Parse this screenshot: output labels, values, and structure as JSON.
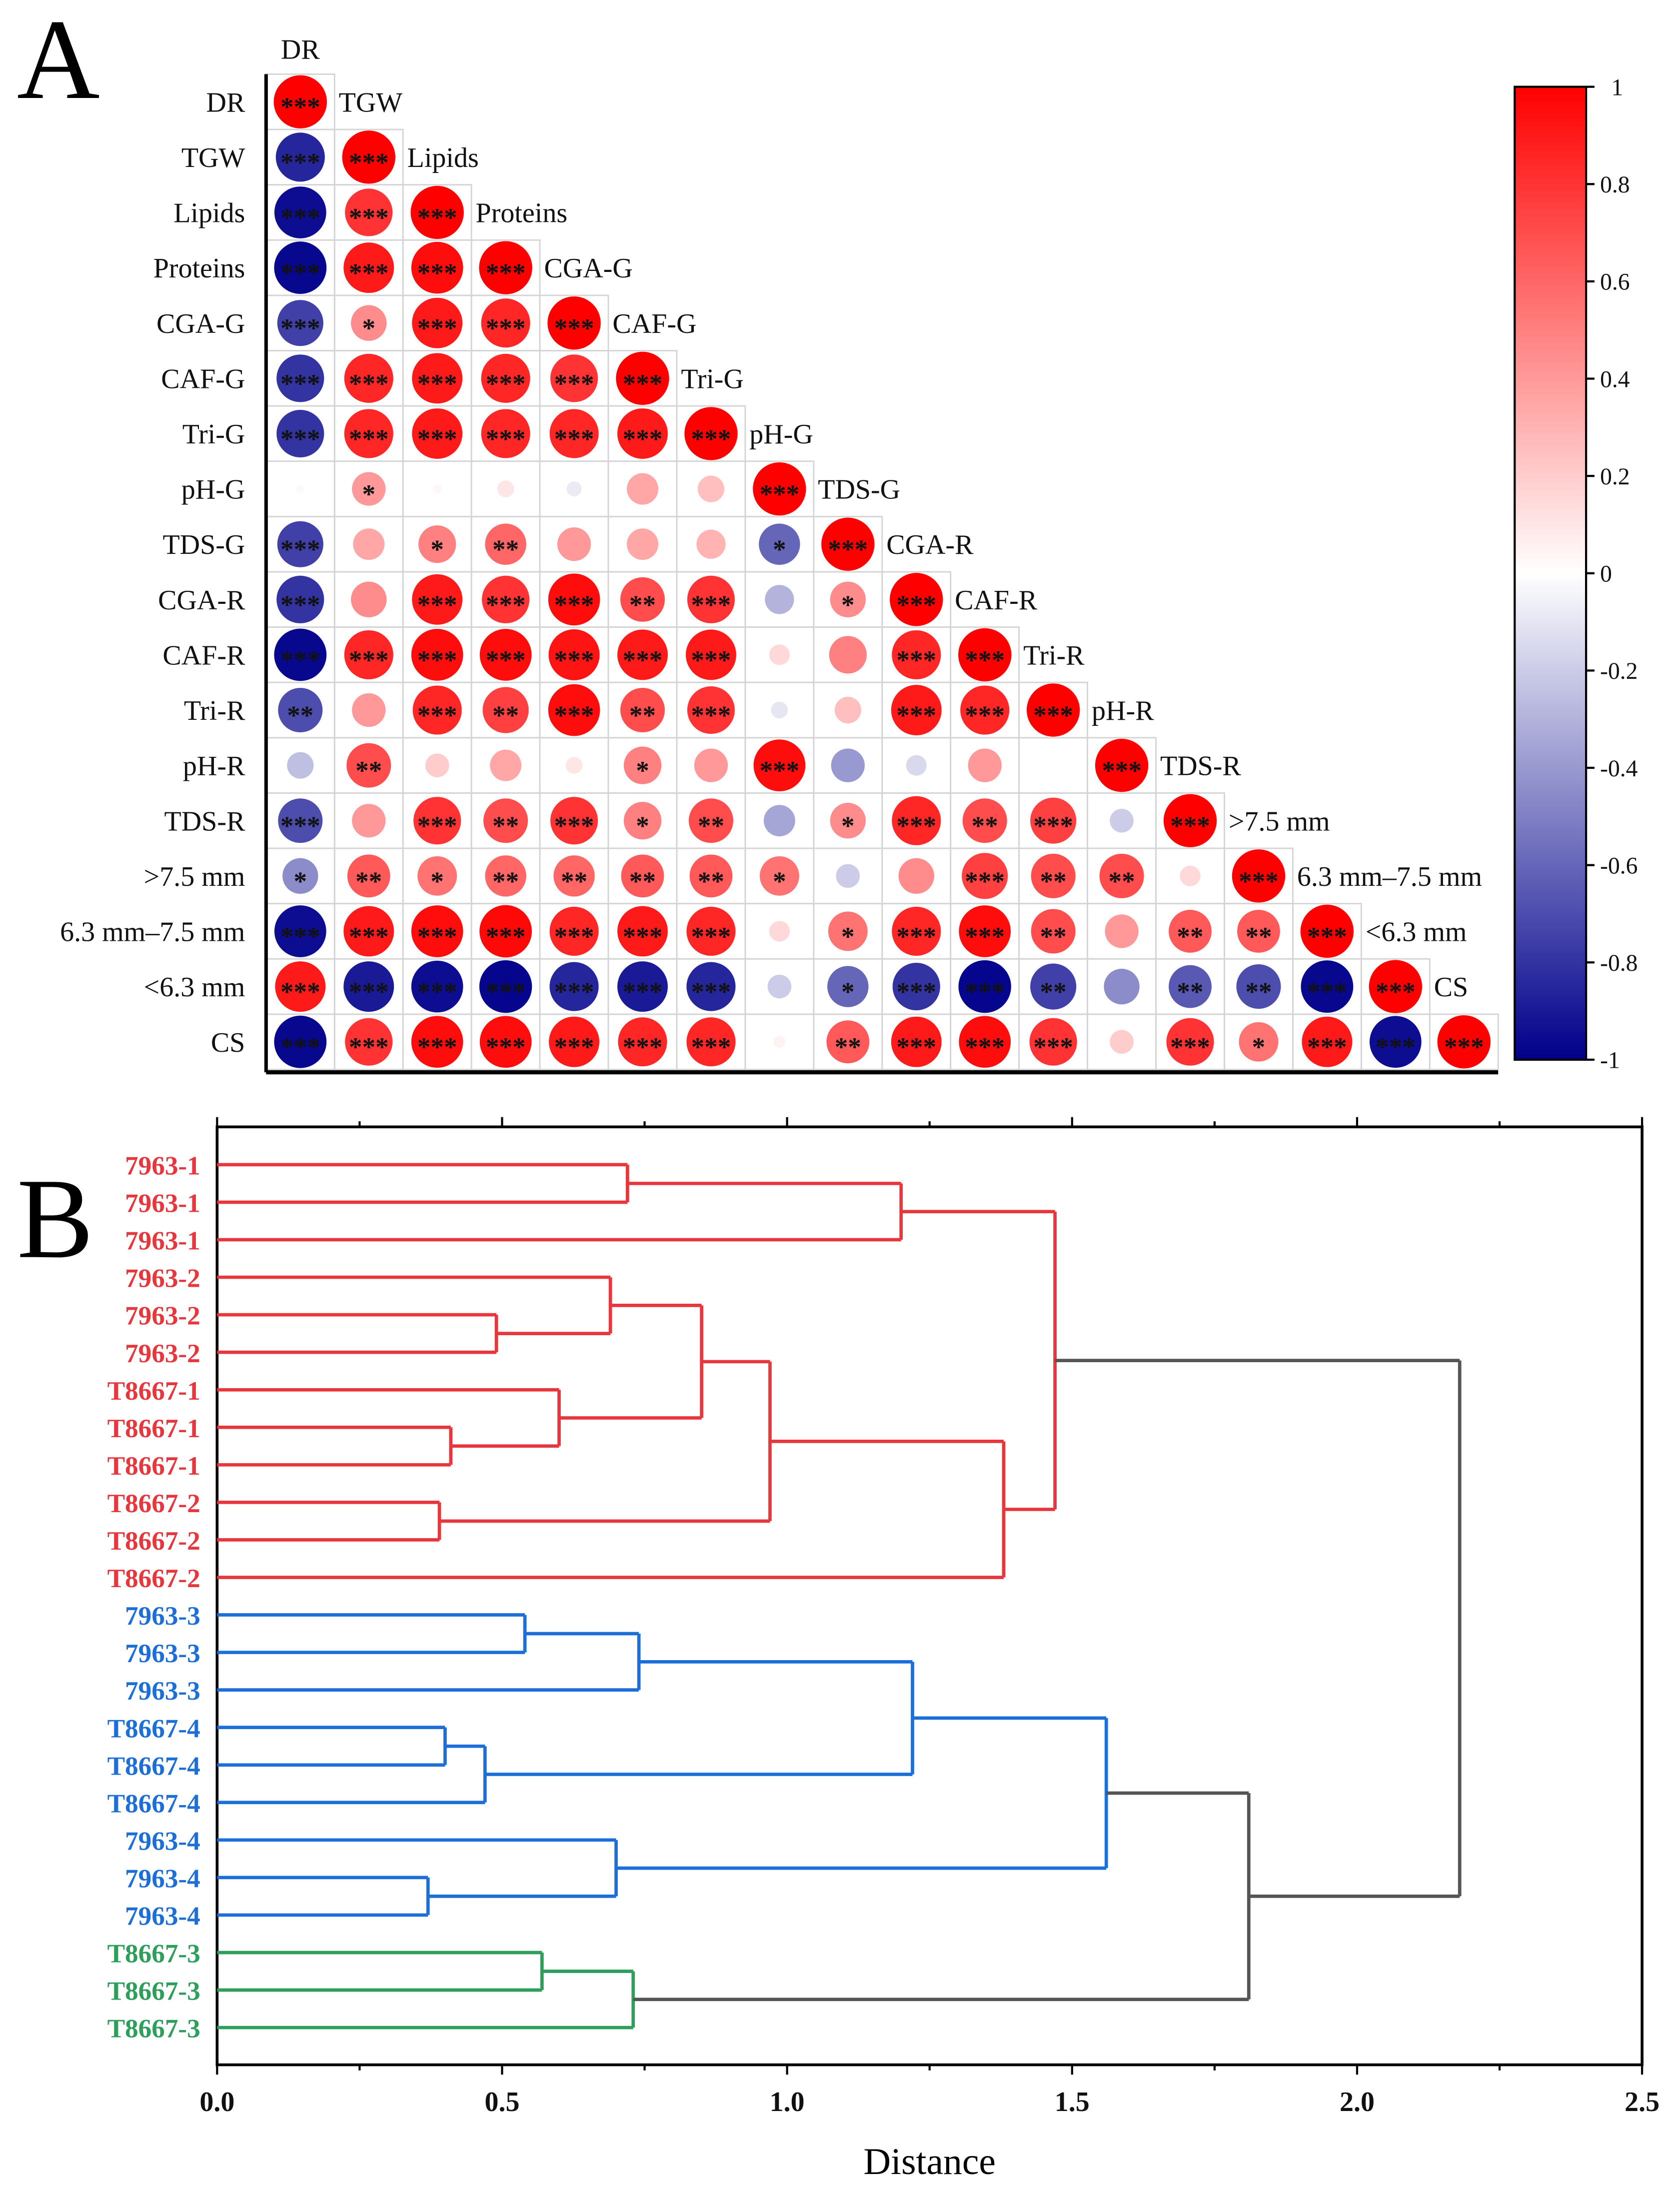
{
  "panels": {
    "a": "A",
    "b": "B"
  },
  "chart_data": [
    {
      "type": "heatmap",
      "subtype": "correlation-circle-lower-triangle",
      "variables": [
        "DR",
        "TGW",
        "Lipids",
        "Proteins",
        "CGA-G",
        "CAF-G",
        "Tri-G",
        "pH-G",
        "TDS-G",
        "CGA-R",
        "CAF-R",
        "Tri-R",
        "pH-R",
        "TDS-R",
        ">7.5 mm",
        "6.3 mm–7.5 mm",
        "<6.3 mm",
        "CS"
      ],
      "values": [
        [
          1
        ],
        [
          -0.85,
          1
        ],
        [
          -0.95,
          0.8,
          1
        ],
        [
          -0.97,
          0.9,
          0.95,
          1
        ],
        [
          -0.75,
          0.45,
          0.9,
          0.85,
          1
        ],
        [
          -0.8,
          0.85,
          0.9,
          0.85,
          0.8,
          1
        ],
        [
          -0.8,
          0.85,
          0.9,
          0.85,
          0.85,
          0.9,
          1
        ],
        [
          -0.02,
          0.4,
          0.03,
          0.1,
          -0.08,
          0.35,
          0.25,
          1
        ],
        [
          -0.75,
          0.35,
          0.5,
          0.6,
          0.4,
          0.35,
          0.3,
          -0.6,
          1
        ],
        [
          -0.8,
          0.45,
          0.9,
          0.8,
          0.95,
          0.7,
          0.8,
          -0.3,
          0.45,
          1
        ],
        [
          -0.97,
          0.85,
          0.95,
          0.95,
          0.92,
          0.9,
          0.9,
          0.15,
          0.5,
          0.85,
          1
        ],
        [
          -0.7,
          0.4,
          0.85,
          0.75,
          0.95,
          0.7,
          0.8,
          -0.1,
          0.25,
          0.9,
          0.85,
          1
        ],
        [
          -0.25,
          0.7,
          0.2,
          0.35,
          0.1,
          0.5,
          0.4,
          0.95,
          -0.4,
          -0.15,
          0.4,
          0.0,
          1
        ],
        [
          -0.7,
          0.4,
          0.8,
          0.7,
          0.8,
          0.5,
          0.7,
          -0.35,
          0.45,
          0.85,
          0.7,
          0.75,
          -0.2,
          1
        ],
        [
          -0.45,
          0.65,
          0.55,
          0.6,
          0.6,
          0.65,
          0.65,
          0.55,
          -0.2,
          0.45,
          0.75,
          0.7,
          0.7,
          0.15,
          1
        ],
        [
          -0.95,
          0.9,
          0.95,
          0.97,
          0.85,
          0.9,
          0.85,
          0.15,
          0.55,
          0.85,
          0.95,
          0.7,
          0.4,
          0.65,
          0.65,
          1
        ],
        [
          0.9,
          -0.9,
          -0.95,
          -0.98,
          -0.85,
          -0.9,
          -0.85,
          -0.2,
          -0.6,
          -0.8,
          -0.98,
          -0.75,
          -0.45,
          -0.65,
          -0.7,
          -0.97,
          1
        ],
        [
          -0.97,
          0.8,
          0.95,
          0.95,
          0.9,
          0.85,
          0.85,
          0.05,
          0.65,
          0.9,
          0.95,
          0.8,
          0.2,
          0.8,
          0.55,
          0.9,
          -0.95,
          1
        ]
      ],
      "significance": [
        [
          "***"
        ],
        [
          "***",
          "***"
        ],
        [
          "***",
          "***",
          "***"
        ],
        [
          "***",
          "***",
          "***",
          "***"
        ],
        [
          "***",
          "*",
          "***",
          "***",
          "***"
        ],
        [
          "***",
          "***",
          "***",
          "***",
          "***",
          "***"
        ],
        [
          "***",
          "***",
          "***",
          "***",
          "***",
          "***",
          "***"
        ],
        [
          "",
          "*",
          "",
          "",
          "",
          "",
          "",
          "***"
        ],
        [
          "***",
          "",
          "*",
          "**",
          "",
          "",
          "",
          "*",
          "***"
        ],
        [
          "***",
          "",
          "***",
          "***",
          "***",
          "**",
          "***",
          "",
          "*",
          "***"
        ],
        [
          "***",
          "***",
          "***",
          "***",
          "***",
          "***",
          "***",
          "",
          "",
          "***",
          "***"
        ],
        [
          "**",
          "",
          "***",
          "**",
          "***",
          "**",
          "***",
          "",
          "",
          "***",
          "***",
          "***"
        ],
        [
          "",
          "**",
          "",
          "",
          "",
          "*",
          "",
          "***",
          "",
          "",
          "",
          "",
          "***"
        ],
        [
          "***",
          "",
          "***",
          "**",
          "***",
          "*",
          "**",
          "",
          "*",
          "***",
          "**",
          "***",
          "",
          "***"
        ],
        [
          "*",
          "**",
          "*",
          "**",
          "**",
          "**",
          "**",
          "*",
          "",
          "",
          "***",
          "**",
          "**",
          "",
          "***"
        ],
        [
          "***",
          "***",
          "***",
          "***",
          "***",
          "***",
          "***",
          "",
          "*",
          "***",
          "***",
          "**",
          "",
          "**",
          "**",
          "***"
        ],
        [
          "***",
          "***",
          "***",
          "***",
          "***",
          "***",
          "***",
          "",
          "*",
          "***",
          "***",
          "**",
          "",
          "**",
          "**",
          "***",
          "***"
        ],
        [
          "***",
          "***",
          "***",
          "***",
          "***",
          "***",
          "***",
          "",
          "**",
          "***",
          "***",
          "***",
          "",
          "***",
          "*",
          "***",
          "***",
          "***"
        ]
      ],
      "colorbar": {
        "min": -1,
        "max": 1,
        "ticks": [
          "1",
          "0.8",
          "0.6",
          "0.4",
          "0.2",
          "0",
          "-0.2",
          "-0.4",
          "-0.6",
          "-0.8",
          "-1"
        ],
        "tick_values": [
          1,
          0.8,
          0.6,
          0.4,
          0.2,
          0,
          -0.2,
          -0.4,
          -0.6,
          -0.8,
          -1
        ],
        "colors": {
          "neg": "#00008b",
          "zero": "#ffffff",
          "pos": "#ff0000"
        }
      }
    },
    {
      "type": "dendrogram",
      "xlabel": "Distance",
      "xlim": [
        0,
        2.5
      ],
      "xticks": [
        "0.0",
        "0.5",
        "1.0",
        "1.5",
        "2.0",
        "2.5"
      ],
      "xtick_values": [
        0,
        0.5,
        1,
        1.5,
        2,
        2.5
      ],
      "group_colors": {
        "red": "#e8373c",
        "blue": "#1c6fd9",
        "green": "#2e9e5b",
        "grey": "#555555"
      },
      "leaves": [
        {
          "label": "7963-1",
          "group": "red"
        },
        {
          "label": "7963-1",
          "group": "red"
        },
        {
          "label": "7963-1",
          "group": "red"
        },
        {
          "label": "7963-2",
          "group": "red"
        },
        {
          "label": "7963-2",
          "group": "red"
        },
        {
          "label": "7963-2",
          "group": "red"
        },
        {
          "label": "T8667-1",
          "group": "red"
        },
        {
          "label": "T8667-1",
          "group": "red"
        },
        {
          "label": "T8667-1",
          "group": "red"
        },
        {
          "label": "T8667-2",
          "group": "red"
        },
        {
          "label": "T8667-2",
          "group": "red"
        },
        {
          "label": "T8667-2",
          "group": "red"
        },
        {
          "label": "7963-3",
          "group": "blue"
        },
        {
          "label": "7963-3",
          "group": "blue"
        },
        {
          "label": "7963-3",
          "group": "blue"
        },
        {
          "label": "T8667-4",
          "group": "blue"
        },
        {
          "label": "T8667-4",
          "group": "blue"
        },
        {
          "label": "T8667-4",
          "group": "blue"
        },
        {
          "label": "7963-4",
          "group": "blue"
        },
        {
          "label": "7963-4",
          "group": "blue"
        },
        {
          "label": "7963-4",
          "group": "blue"
        },
        {
          "label": "T8667-3",
          "group": "green"
        },
        {
          "label": "T8667-3",
          "group": "green"
        },
        {
          "label": "T8667-3",
          "group": "green"
        }
      ],
      "merges": [
        [
          0,
          1,
          0.72,
          "red"
        ],
        [
          24,
          2,
          1.2,
          "red"
        ],
        [
          4,
          5,
          0.49,
          "red"
        ],
        [
          3,
          26,
          0.69,
          "red"
        ],
        [
          7,
          8,
          0.41,
          "red"
        ],
        [
          6,
          28,
          0.6,
          "red"
        ],
        [
          27,
          29,
          0.85,
          "red"
        ],
        [
          9,
          10,
          0.39,
          "red"
        ],
        [
          30,
          31,
          0.97,
          "red"
        ],
        [
          32,
          11,
          1.38,
          "red"
        ],
        [
          25,
          33,
          1.47,
          "red"
        ],
        [
          12,
          13,
          0.54,
          "blue"
        ],
        [
          35,
          14,
          0.74,
          "blue"
        ],
        [
          15,
          16,
          0.4,
          "blue"
        ],
        [
          37,
          17,
          0.47,
          "blue"
        ],
        [
          36,
          38,
          1.22,
          "blue"
        ],
        [
          19,
          20,
          0.37,
          "blue"
        ],
        [
          18,
          40,
          0.7,
          "blue"
        ],
        [
          39,
          41,
          1.56,
          "blue"
        ],
        [
          21,
          22,
          0.57,
          "green"
        ],
        [
          43,
          23,
          0.73,
          "green"
        ],
        [
          42,
          44,
          1.81,
          "grey"
        ],
        [
          34,
          45,
          2.18,
          "grey"
        ]
      ]
    }
  ]
}
